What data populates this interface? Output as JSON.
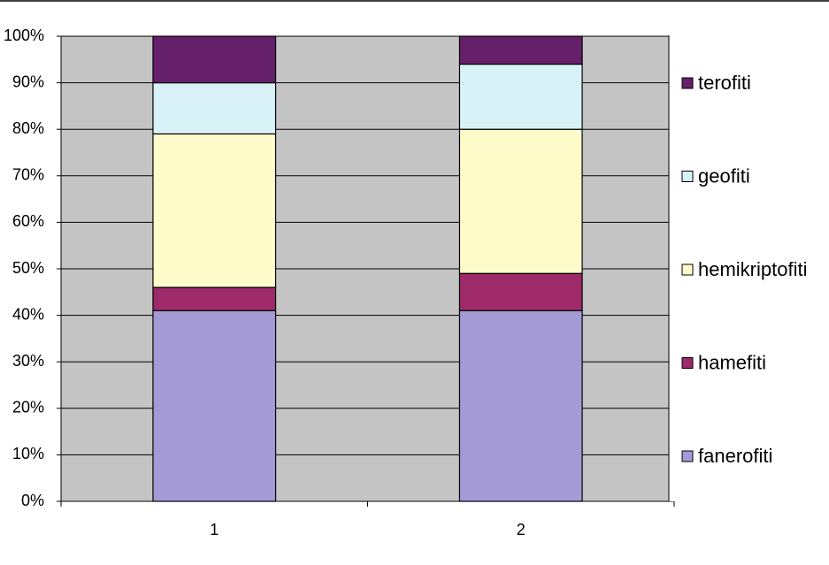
{
  "chart_data": {
    "type": "stacked-bar-100",
    "categories": [
      "1",
      "2"
    ],
    "series": [
      {
        "name": "fanerofiti",
        "color": "#a49ad6",
        "values": [
          41,
          41
        ]
      },
      {
        "name": "hamefiti",
        "color": "#9e2a6a",
        "values": [
          5,
          8
        ]
      },
      {
        "name": "hemikriptofiti",
        "color": "#fffccc",
        "values": [
          33,
          31
        ]
      },
      {
        "name": "geofiti",
        "color": "#d9f2f7",
        "values": [
          11,
          14
        ]
      },
      {
        "name": "terofiti",
        "color": "#66206b",
        "values": [
          10,
          6
        ]
      }
    ],
    "ylim": [
      0,
      100
    ],
    "yticks": [
      {
        "value": 0,
        "label": "0%"
      },
      {
        "value": 10,
        "label": "10%"
      },
      {
        "value": 20,
        "label": "20%"
      },
      {
        "value": 30,
        "label": "30%"
      },
      {
        "value": 40,
        "label": "40%"
      },
      {
        "value": 50,
        "label": "50%"
      },
      {
        "value": 60,
        "label": "60%"
      },
      {
        "value": 70,
        "label": "70%"
      },
      {
        "value": 80,
        "label": "80%"
      },
      {
        "value": 90,
        "label": "90%"
      },
      {
        "value": 100,
        "label": "100%"
      }
    ],
    "grid": true,
    "legend": "right"
  }
}
